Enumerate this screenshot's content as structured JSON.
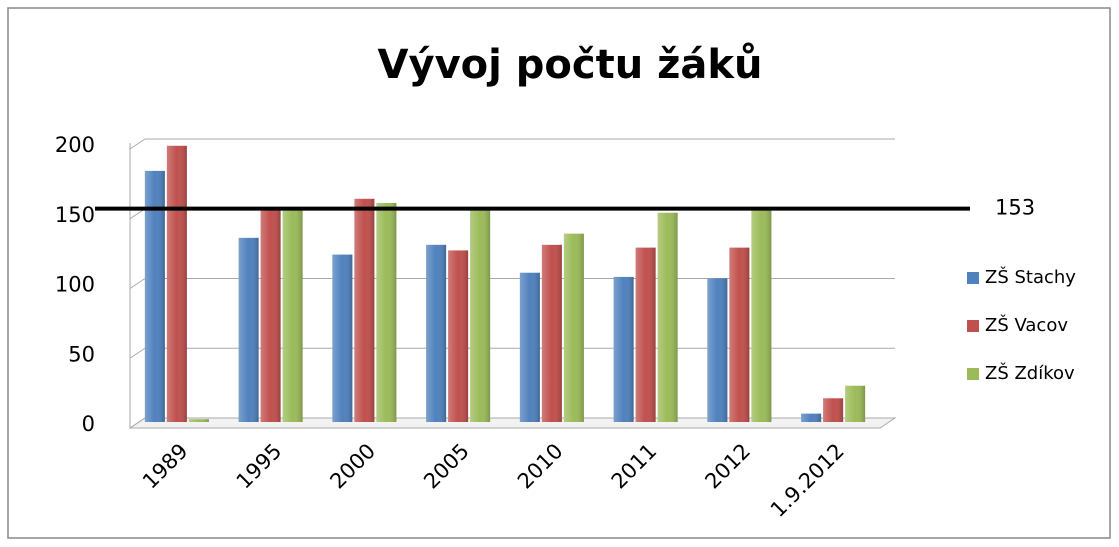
{
  "chart_data": {
    "type": "bar",
    "title": "Vývoj počtu žáků",
    "categories": [
      "1989",
      "1995",
      "2000",
      "2005",
      "2010",
      "2011",
      "2012",
      "1.9.2012"
    ],
    "series": [
      {
        "name": "ZŠ Stachy",
        "color": "#4f81bd",
        "values": [
          180,
          132,
          120,
          127,
          107,
          104,
          103,
          6
        ]
      },
      {
        "name": "ZŠ Vacov",
        "color": "#c0504d",
        "values": [
          198,
          153,
          160,
          123,
          127,
          125,
          125,
          17
        ]
      },
      {
        "name": "ZŠ Zdíkov",
        "color": "#9bbb59",
        "values": [
          2,
          153,
          157,
          153,
          135,
          150,
          153,
          26
        ]
      }
    ],
    "reference_value": 153,
    "ylim": [
      0,
      200
    ],
    "yticks": [
      0,
      50,
      100,
      150,
      200
    ],
    "grid": true,
    "legend": "right"
  }
}
